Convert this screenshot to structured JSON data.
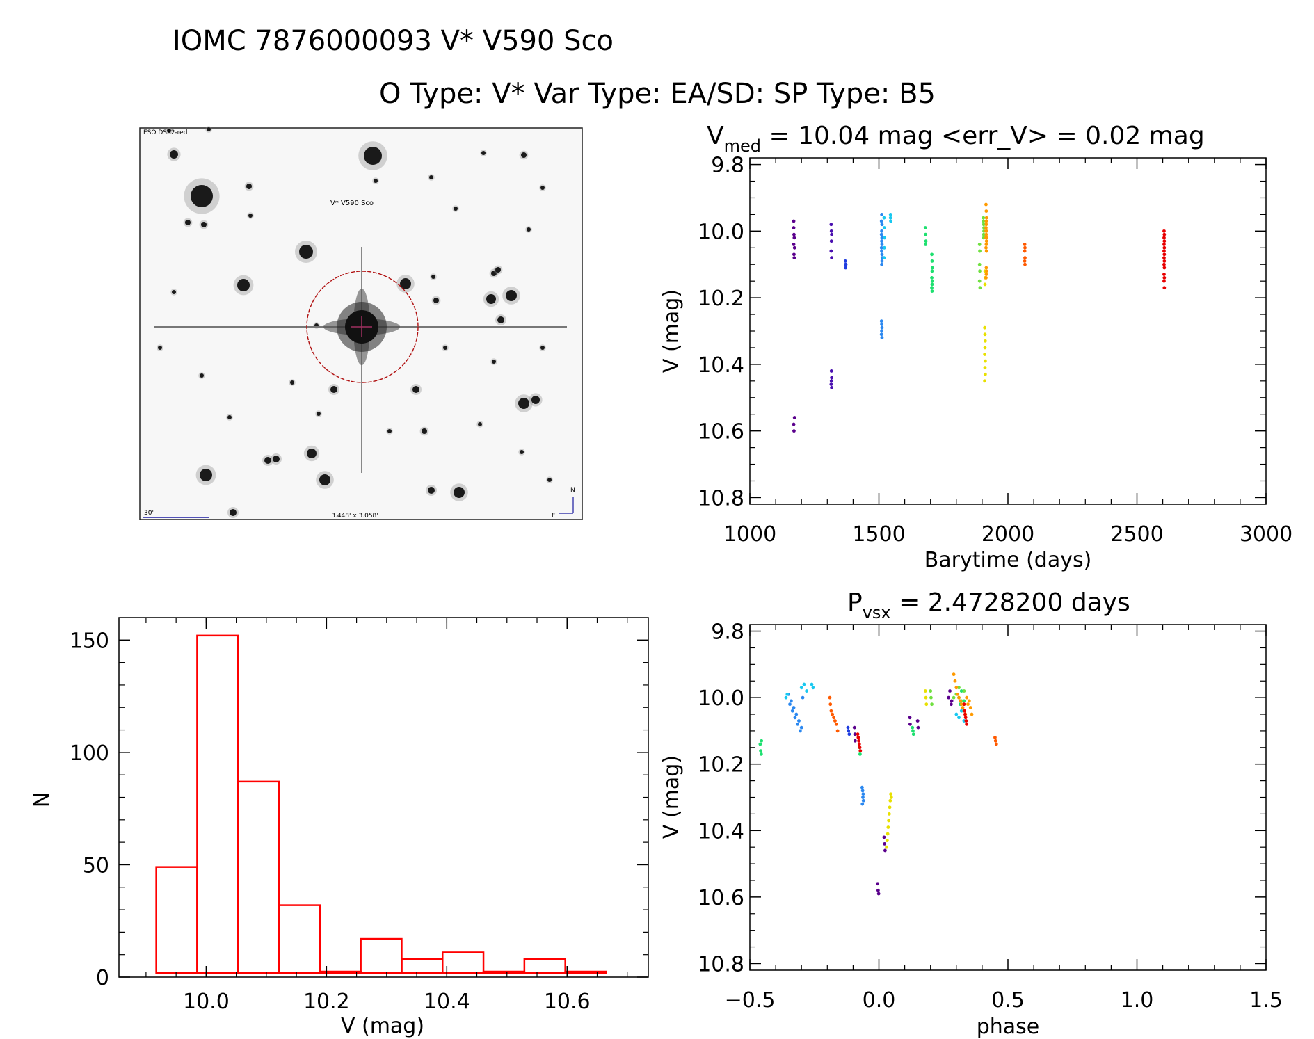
{
  "header": {
    "title_line1": "IOMC 7876000093    V* V590 Sco",
    "title_line2": "O Type: V*  Var Type: EA/SD:  SP Type: B5"
  },
  "finder": {
    "survey_label": "ESO DSS2-red",
    "target_label": "V* V590 Sco",
    "scale_label": "30\"",
    "fov_label": "3.448' x 3.058'",
    "north_label": "N",
    "east_label": "E"
  },
  "colors": {
    "histogram": "#ff0000",
    "target_circle": "#b01010",
    "finder_text_blue": "#1a1aa0",
    "finder_text_red": "#c00000"
  },
  "chart_data": [
    {
      "id": "lightcurve",
      "type": "scatter",
      "title_main": "V",
      "title_sub": "med",
      "title_rest": " = 10.04 mag <err_V> = 0.02 mag",
      "xlabel": "Barytime (days)",
      "ylabel": "V (mag)",
      "xlim": [
        1000,
        3000
      ],
      "ylim": [
        10.82,
        9.78
      ],
      "xticks": [
        1000,
        1500,
        2000,
        2500,
        3000
      ],
      "xtick_labels": [
        "1000",
        "1500",
        "2000",
        "2500",
        "3000"
      ],
      "yticks": [
        9.8,
        10.0,
        10.2,
        10.4,
        10.6,
        10.8
      ],
      "ytick_labels": [
        "9.8",
        "10.0",
        "10.2",
        "10.4",
        "10.6",
        "10.8"
      ],
      "series": [
        {
          "name": "season1",
          "color": "#5a008c",
          "x": [
            1170,
            1170,
            1171,
            1172,
            1170,
            1173,
            1171,
            1172,
            1173,
            1170,
            1171
          ],
          "y": [
            9.97,
            9.99,
            10.01,
            10.02,
            10.04,
            10.05,
            10.07,
            10.08,
            10.56,
            10.58,
            10.6
          ]
        },
        {
          "name": "season2",
          "color": "#4a10b0",
          "x": [
            1315,
            1316,
            1317,
            1316,
            1315,
            1317,
            1316,
            1317,
            1316,
            1315,
            1317
          ],
          "y": [
            9.98,
            10.0,
            10.01,
            10.03,
            10.06,
            10.08,
            10.42,
            10.44,
            10.45,
            10.46,
            10.47
          ]
        },
        {
          "name": "season3",
          "color": "#1f3de0",
          "x": [
            1370,
            1371,
            1372,
            1371
          ],
          "y": [
            10.09,
            10.1,
            10.1,
            10.11
          ]
        },
        {
          "name": "season4",
          "color": "#2b88f0",
          "x": [
            1510,
            1511,
            1512,
            1511,
            1510,
            1512,
            1511,
            1510,
            1512,
            1511,
            1510,
            1512,
            1511,
            1512,
            1510,
            1511,
            1512,
            1513,
            1512,
            1511
          ],
          "y": [
            10.27,
            10.28,
            10.29,
            10.3,
            10.31,
            10.32,
            9.95,
            9.97,
            9.98,
            10.0,
            10.01,
            10.02,
            10.03,
            10.04,
            10.05,
            10.06,
            10.07,
            10.08,
            10.09,
            10.1
          ]
        },
        {
          "name": "season5",
          "color": "#18c8f0",
          "x": [
            1520,
            1521,
            1522,
            1521,
            1520,
            1545,
            1546,
            1545
          ],
          "y": [
            9.96,
            9.99,
            10.02,
            10.05,
            10.08,
            9.95,
            9.97,
            9.96
          ]
        },
        {
          "name": "season6",
          "color": "#1ee070",
          "x": [
            1680,
            1681,
            1682,
            1681,
            1705,
            1706,
            1707,
            1706,
            1705,
            1707,
            1706,
            1705,
            1706
          ],
          "y": [
            9.99,
            10.01,
            10.03,
            10.04,
            10.07,
            10.09,
            10.11,
            10.12,
            10.14,
            10.15,
            10.16,
            10.17,
            10.18
          ]
        },
        {
          "name": "season7",
          "color": "#70e040",
          "x": [
            1890,
            1891,
            1890,
            1891,
            1890,
            1892,
            1905,
            1906,
            1907,
            1906,
            1905,
            1907,
            1906
          ],
          "y": [
            10.04,
            10.06,
            10.1,
            10.12,
            10.15,
            10.17,
            9.96,
            9.98,
            10.0,
            10.02,
            9.97,
            9.99,
            10.01
          ]
        },
        {
          "name": "season8",
          "color": "#e8e000",
          "x": [
            1910,
            1911,
            1912,
            1911,
            1910,
            1912,
            1911,
            1912,
            1910,
            1911,
            1912,
            1911
          ],
          "y": [
            10.29,
            10.31,
            10.33,
            10.35,
            10.37,
            10.39,
            10.41,
            10.43,
            10.45,
            10.12,
            10.14,
            10.16
          ]
        },
        {
          "name": "season9",
          "color": "#ff9a00",
          "x": [
            1915,
            1916,
            1917,
            1916,
            1915,
            1917,
            1916,
            1915,
            1917,
            1916,
            1915,
            1917,
            1916,
            1915,
            1917,
            1916,
            1917,
            1916,
            1915
          ],
          "y": [
            9.92,
            9.94,
            9.96,
            9.98,
            9.99,
            10.0,
            10.01,
            10.02,
            10.03,
            10.04,
            10.05,
            10.06,
            9.97,
            10.0,
            10.02,
            10.11,
            10.12,
            10.13,
            10.14
          ]
        },
        {
          "name": "season10",
          "color": "#ff5a00",
          "x": [
            2065,
            2066,
            2065,
            2066,
            2065,
            2066
          ],
          "y": [
            10.04,
            10.05,
            10.06,
            10.08,
            10.09,
            10.1
          ]
        },
        {
          "name": "season11",
          "color": "#e80000",
          "x": [
            2605,
            2606,
            2605,
            2606,
            2605,
            2606,
            2605,
            2606,
            2605,
            2606,
            2605,
            2606,
            2605,
            2606,
            2605,
            2606
          ],
          "y": [
            10.0,
            10.01,
            10.02,
            10.03,
            10.04,
            10.05,
            10.06,
            10.07,
            10.08,
            10.09,
            10.1,
            10.11,
            10.13,
            10.14,
            10.15,
            10.17
          ]
        }
      ]
    },
    {
      "id": "histogram",
      "type": "bar",
      "title": "",
      "xlabel": "V (mag)",
      "ylabel": "N",
      "xlim": [
        9.855,
        10.735
      ],
      "ylim": [
        0,
        160
      ],
      "xticks": [
        10.0,
        10.2,
        10.4,
        10.6
      ],
      "xtick_labels": [
        "10.0",
        "10.2",
        "10.4",
        "10.6"
      ],
      "yticks": [
        0,
        50,
        100,
        150
      ],
      "ytick_labels": [
        "0",
        "50",
        "100",
        "150"
      ],
      "bin_edges": [
        9.917,
        9.985,
        10.053,
        10.121,
        10.189,
        10.257,
        10.325,
        10.393,
        10.461,
        10.529,
        10.597,
        10.665
      ],
      "values": [
        49,
        152,
        87,
        32,
        1,
        17,
        8,
        11,
        1,
        8,
        2
      ]
    },
    {
      "id": "phased",
      "type": "scatter",
      "title_main": "P",
      "title_sub": "vsx",
      "title_rest": " = 2.4728200 days",
      "xlabel": "phase",
      "ylabel": "V (mag)",
      "xlim": [
        -0.5,
        1.5
      ],
      "ylim": [
        10.82,
        9.78
      ],
      "xticks": [
        -0.5,
        0.0,
        0.5,
        1.0,
        1.5
      ],
      "xtick_labels": [
        "−0.5",
        "0.0",
        "0.5",
        "1.0",
        "1.5"
      ],
      "yticks": [
        9.8,
        10.0,
        10.2,
        10.4,
        10.6,
        10.8
      ],
      "ytick_labels": [
        "9.8",
        "10.0",
        "10.2",
        "10.4",
        "10.6",
        "10.8"
      ],
      "series": [
        {
          "name": "purple",
          "color": "#5a008c",
          "x": [
            -0.005,
            -0.003,
            -0.001,
            0.02,
            0.022,
            0.024,
            0.12,
            0.121,
            0.15,
            0.152,
            0.27,
            0.275,
            0.28,
            0.282,
            -0.095,
            -0.093,
            -0.092
          ],
          "y": [
            10.56,
            10.58,
            10.59,
            10.42,
            10.44,
            10.46,
            10.06,
            10.08,
            10.07,
            10.09,
            10.0,
            9.98,
            10.02,
            10.01,
            10.09,
            10.11,
            10.13
          ]
        },
        {
          "name": "blue",
          "color": "#2b88f0",
          "x": [
            -0.065,
            -0.063,
            -0.061,
            -0.062,
            -0.06,
            -0.064,
            -0.35,
            -0.34,
            -0.33,
            -0.32,
            -0.31,
            -0.3,
            -0.345,
            -0.335,
            -0.325,
            -0.315,
            -0.305,
            -0.295
          ],
          "y": [
            10.27,
            10.28,
            10.29,
            10.3,
            10.31,
            10.32,
            9.99,
            10.01,
            10.03,
            10.05,
            10.07,
            10.09,
            10.02,
            10.04,
            10.06,
            10.08,
            10.1,
            10.0
          ]
        },
        {
          "name": "cyan",
          "color": "#18c8f0",
          "x": [
            -0.36,
            -0.355,
            -0.3,
            -0.29,
            -0.28,
            -0.26,
            -0.255,
            0.3,
            0.31,
            0.32,
            0.33
          ],
          "y": [
            10.0,
            9.99,
            9.97,
            9.96,
            9.98,
            9.96,
            9.97,
            10.05,
            10.06,
            10.04,
            10.07
          ]
        },
        {
          "name": "darkblue",
          "color": "#1f3de0",
          "x": [
            -0.12,
            -0.118,
            -0.115
          ],
          "y": [
            10.09,
            10.1,
            10.11
          ]
        },
        {
          "name": "green",
          "color": "#1ee070",
          "x": [
            -0.46,
            -0.458,
            -0.456,
            -0.455,
            0.13,
            0.132,
            0.134,
            0.31,
            0.315,
            0.32,
            0.33,
            -0.075,
            -0.073
          ],
          "y": [
            10.14,
            10.16,
            10.17,
            10.13,
            10.09,
            10.1,
            10.11,
            10.0,
            10.02,
            9.98,
            10.01,
            10.15,
            10.17
          ]
        },
        {
          "name": "lightgreen",
          "color": "#70e040",
          "x": [
            0.2,
            0.202,
            0.205,
            0.29,
            0.3,
            0.31,
            0.32,
            0.33
          ],
          "y": [
            9.98,
            10.0,
            10.02,
            10.0,
            9.99,
            9.97,
            10.01,
            9.98
          ]
        },
        {
          "name": "yellow",
          "color": "#e8e000",
          "x": [
            0.03,
            0.032,
            0.034,
            0.036,
            0.038,
            0.04,
            0.042,
            0.044,
            0.046,
            0.048,
            0.18,
            0.182,
            0.184
          ],
          "y": [
            10.45,
            10.43,
            10.41,
            10.39,
            10.37,
            10.35,
            10.33,
            10.31,
            10.29,
            10.3,
            9.98,
            10.0,
            10.02
          ]
        },
        {
          "name": "orange",
          "color": "#ff9a00",
          "x": [
            0.29,
            0.295,
            0.3,
            0.305,
            0.31,
            0.315,
            0.32,
            0.325,
            0.33,
            0.335,
            0.34,
            0.345,
            0.35,
            0.355,
            0.36
          ],
          "y": [
            9.93,
            9.95,
            9.97,
            9.99,
            10.0,
            10.01,
            10.02,
            10.03,
            10.04,
            10.05,
            10.0,
            10.02,
            10.01,
            10.03,
            10.05
          ]
        },
        {
          "name": "darkorange",
          "color": "#ff5a00",
          "x": [
            -0.19,
            -0.188,
            -0.185,
            -0.18,
            -0.175,
            -0.17,
            -0.165,
            -0.16,
            0.45,
            0.452,
            0.455
          ],
          "y": [
            10.0,
            10.02,
            10.04,
            10.05,
            10.06,
            10.07,
            10.08,
            10.1,
            10.12,
            10.13,
            10.14
          ]
        },
        {
          "name": "red",
          "color": "#e80000",
          "x": [
            -0.082,
            -0.08,
            -0.078,
            -0.076,
            -0.074,
            -0.072,
            0.33,
            0.332,
            0.334,
            0.336,
            0.338,
            0.34
          ],
          "y": [
            10.11,
            10.12,
            10.13,
            10.14,
            10.15,
            10.16,
            10.02,
            10.04,
            10.05,
            10.06,
            10.07,
            10.08
          ]
        }
      ]
    }
  ]
}
